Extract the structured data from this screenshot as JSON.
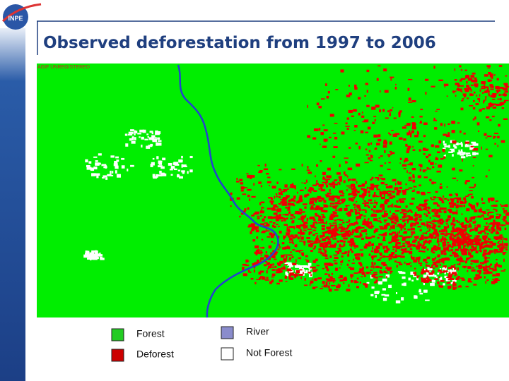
{
  "logo": {
    "text": "INPE"
  },
  "header": {
    "title": "Observed deforestation from 1997 to 2006"
  },
  "map": {
    "watermark": "AGIF UNREGISTERED",
    "legend": [
      {
        "label": "Forest",
        "color": "#22cc22"
      },
      {
        "label": "Deforest",
        "color": "#cc0000"
      },
      {
        "label": "River",
        "color": "#8a8ccc"
      },
      {
        "label": "Not Forest",
        "color": "#ffffff"
      }
    ]
  }
}
